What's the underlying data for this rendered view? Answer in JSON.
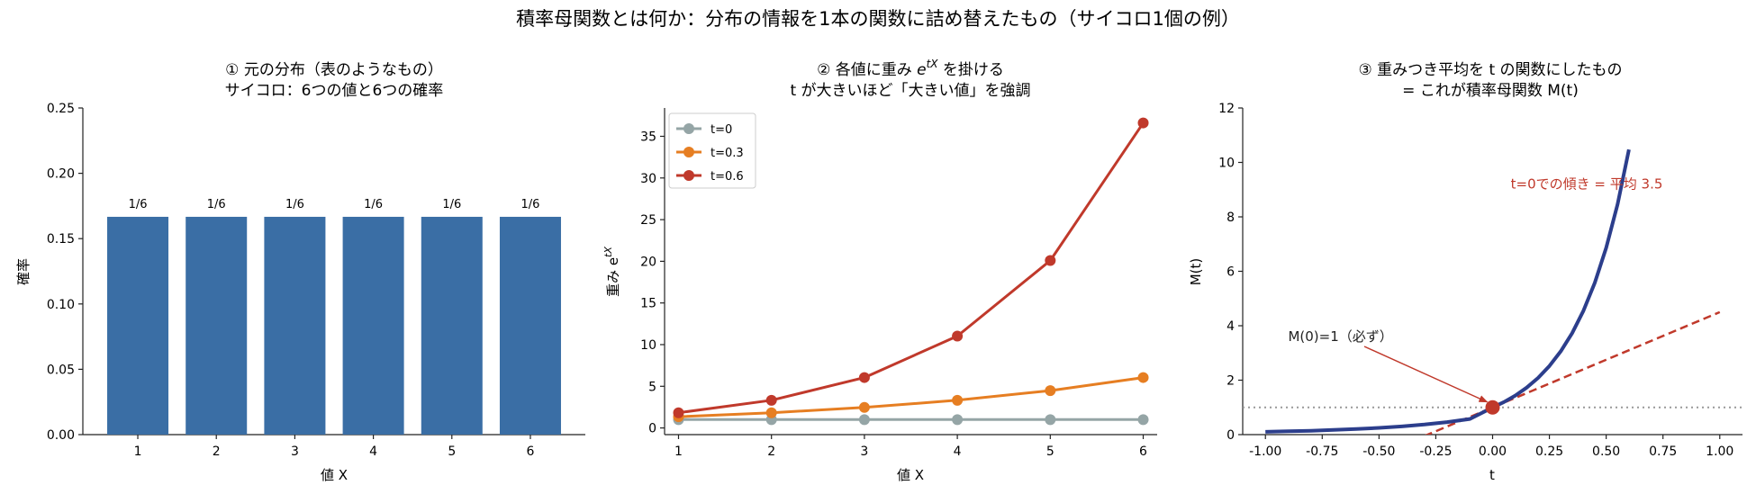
{
  "suptitle": "積率母関数とは何か：分布の情報を1本の関数に詰め替えたもの（サイコロ1個の例）",
  "chart_data": [
    {
      "id": "panel1",
      "type": "bar",
      "title_lines": [
        "① 元の分布（表のようなもの）",
        "サイコロ：6つの値と6つの確率"
      ],
      "xlabel": "値 X",
      "ylabel": "確率",
      "categories": [
        "1",
        "2",
        "3",
        "4",
        "5",
        "6"
      ],
      "values": [
        0.1667,
        0.1667,
        0.1667,
        0.1667,
        0.1667,
        0.1667
      ],
      "data_labels": [
        "1/6",
        "1/6",
        "1/6",
        "1/6",
        "1/6",
        "1/6"
      ],
      "ylim": [
        0,
        0.25
      ],
      "yticks": [
        0.0,
        0.05,
        0.1,
        0.15,
        0.2,
        0.25
      ],
      "ytick_labels": [
        "0.00",
        "0.05",
        "0.10",
        "0.15",
        "0.20",
        "0.25"
      ],
      "bar_color": "#3a6ea5",
      "grid": false
    },
    {
      "id": "panel2",
      "type": "line",
      "title_lines": [
        "② 各値に重み e^tX を掛ける",
        "t が大きいほど「大きい値」を強調"
      ],
      "title_prefix": "② 各値に重み ",
      "title_math_base": "e",
      "title_math_sup": "tX",
      "title_suffix": " を掛ける",
      "title_line2": "t が大きいほど「大きい値」を強調",
      "xlabel": "値 X",
      "ylabel_base": "重み e",
      "ylabel_sup": "tX",
      "x": [
        1,
        2,
        3,
        4,
        5,
        6
      ],
      "xlim": [
        0.85,
        6.15
      ],
      "ylim": [
        -0.8,
        38.4
      ],
      "yticks": [
        0,
        5,
        10,
        15,
        20,
        25,
        30,
        35
      ],
      "legend_position": "upper-left",
      "series": [
        {
          "name": "t=0",
          "color": "#95a5a6",
          "values": [
            1,
            1,
            1,
            1,
            1,
            1
          ]
        },
        {
          "name": "t=0.3",
          "color": "#e67e22",
          "values": [
            1.35,
            1.82,
            2.46,
            3.32,
            4.48,
            6.05
          ]
        },
        {
          "name": "t=0.6",
          "color": "#c0392b",
          "values": [
            1.82,
            3.32,
            6.05,
            11.02,
            20.09,
            36.6
          ]
        }
      ],
      "grid": false
    },
    {
      "id": "panel3",
      "type": "line",
      "title_lines": [
        "③ 重みつき平均を t の関数にしたもの",
        "= これが積率母関数 M(t)"
      ],
      "xlabel": "t",
      "ylabel": "M(t)",
      "xlim": [
        -1.1,
        1.1
      ],
      "ylim": [
        0,
        12
      ],
      "xticks": [
        -1.0,
        -0.75,
        -0.5,
        -0.25,
        0.0,
        0.25,
        0.5,
        0.75,
        1.0
      ],
      "xtick_labels": [
        "-1.00",
        "-0.75",
        "-0.50",
        "-0.25",
        "0.00",
        "0.25",
        "0.50",
        "0.75",
        "1.00"
      ],
      "yticks": [
        0,
        2,
        4,
        6,
        8,
        10,
        12
      ],
      "curve": {
        "name": "M(t)",
        "color": "#2c3e8c",
        "t": [
          -1.0,
          -0.9,
          -0.8,
          -0.7,
          -0.6,
          -0.5,
          -0.4,
          -0.3,
          -0.2,
          -0.1,
          0.0,
          0.05,
          0.1,
          0.15,
          0.2,
          0.25,
          0.3,
          0.35,
          0.4,
          0.45,
          0.5,
          0.55,
          0.6
        ],
        "values": [
          0.103,
          0.121,
          0.143,
          0.171,
          0.205,
          0.248,
          0.302,
          0.371,
          0.459,
          0.575,
          1.0,
          1.197,
          1.436,
          1.727,
          2.084,
          2.522,
          3.06,
          3.727,
          4.553,
          5.58,
          6.861,
          8.462,
          10.472
        ]
      },
      "tangent": {
        "color": "#c0392b",
        "x": [
          -0.3,
          1.0
        ],
        "y": [
          -0.05,
          4.5
        ],
        "style": "dashed"
      },
      "reference_line": {
        "y": 1,
        "color": "#999999",
        "style": "dotted"
      },
      "point": {
        "x": 0,
        "y": 1,
        "color": "#c0392b"
      },
      "annotations": [
        {
          "text": "t=0での傾き = 平均 3.5",
          "color": "#c0392b",
          "x": 0.08,
          "y": 9.2
        },
        {
          "text": "M(0)=1（必ず）",
          "color": "#222222",
          "x": -0.9,
          "y": 3.6,
          "arrow_to": [
            0,
            1
          ]
        }
      ],
      "grid": false
    }
  ]
}
